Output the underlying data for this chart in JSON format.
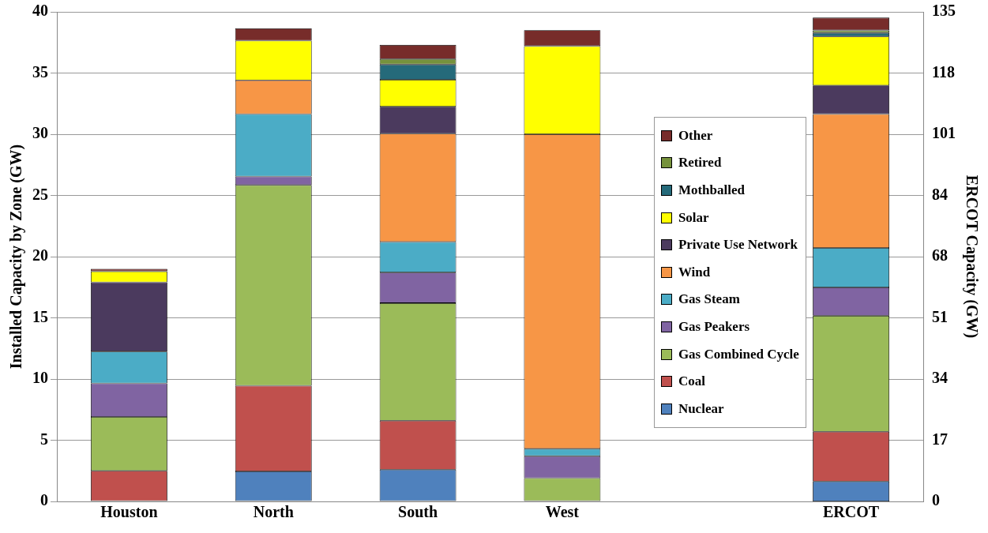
{
  "chart_data": {
    "type": "bar",
    "stacked": true,
    "ylabel": "Installed Capacity by Zone (GW)",
    "y2label": "ERCOT Capacity (GW)",
    "categories": [
      "Houston",
      "North",
      "South",
      "West",
      null,
      "ERCOT"
    ],
    "ylim": [
      0,
      40
    ],
    "yticks": [
      0,
      5,
      10,
      15,
      20,
      25,
      30,
      35,
      40
    ],
    "y2lim": [
      0,
      135
    ],
    "y2ticks": [
      0,
      {
        "value": 16.875,
        "label": "17"
      },
      {
        "value": 33.75,
        "label": "34"
      },
      {
        "value": 50.625,
        "label": "51"
      },
      {
        "value": 67.5,
        "label": "68"
      },
      {
        "value": 84.375,
        "label": "84"
      },
      {
        "value": 101.25,
        "label": "101"
      },
      {
        "value": 118.125,
        "label": "118"
      },
      135
    ],
    "grid": "y",
    "legend": "right",
    "series": [
      {
        "name": "Nuclear",
        "color": "#4f81bd",
        "values": [
          null,
          2.45,
          2.6,
          null,
          null,
          null
        ]
      },
      {
        "name": "Coal",
        "color": "#c0504d",
        "values": [
          2.5,
          7.0,
          4.0,
          null,
          null,
          null
        ]
      },
      {
        "name": "Gas Combined Cycle",
        "color": "#9bbb59",
        "values": [
          4.4,
          16.4,
          9.6,
          1.9,
          null,
          null
        ]
      },
      {
        "name": "Gas Peakers",
        "color": "#8064a2",
        "values": [
          2.75,
          0.7,
          2.5,
          1.8,
          null,
          null
        ]
      },
      {
        "name": "Gas Steam",
        "color": "#4bacc6",
        "values": [
          2.6,
          5.1,
          2.5,
          0.6,
          null,
          null
        ]
      },
      {
        "name": "Wind",
        "color": "#f79646",
        "values": [
          null,
          2.75,
          8.85,
          25.7,
          null,
          null
        ]
      },
      {
        "name": "Private Use Network",
        "color": "#4b3a5e",
        "values": [
          5.65,
          null,
          2.2,
          null,
          null,
          null
        ]
      },
      {
        "name": "Solar",
        "color": "#ffff00",
        "values": [
          0.9,
          3.25,
          2.2,
          7.2,
          null,
          null
        ]
      },
      {
        "name": "Mothballed",
        "color": "#256a7a",
        "values": [
          null,
          null,
          1.25,
          null,
          null,
          null
        ]
      },
      {
        "name": "Retired",
        "color": "#76923c",
        "values": [
          null,
          null,
          0.45,
          null,
          null,
          null
        ]
      },
      {
        "name": "Other",
        "color": "#772c2a",
        "values": [
          0.2,
          1.0,
          1.15,
          1.3,
          null,
          null
        ]
      },
      {
        "axis": "y2",
        "color": "#4f81bd",
        "values": [
          null,
          null,
          null,
          null,
          null,
          5.5
        ]
      },
      {
        "axis": "y2",
        "color": "#c0504d",
        "values": [
          null,
          null,
          null,
          null,
          null,
          13.7
        ]
      },
      {
        "axis": "y2",
        "color": "#9bbb59",
        "values": [
          null,
          null,
          null,
          null,
          null,
          32.0
        ]
      },
      {
        "axis": "y2",
        "color": "#8064a2",
        "values": [
          null,
          null,
          null,
          null,
          null,
          7.8
        ]
      },
      {
        "axis": "y2",
        "color": "#4bacc6",
        "values": [
          null,
          null,
          null,
          null,
          null,
          10.9
        ]
      },
      {
        "axis": "y2",
        "color": "#f79646",
        "values": [
          null,
          null,
          null,
          null,
          null,
          36.9
        ]
      },
      {
        "axis": "y2",
        "color": "#4b3a5e",
        "values": [
          null,
          null,
          null,
          null,
          null,
          7.9
        ]
      },
      {
        "axis": "y2",
        "color": "#ffff00",
        "values": [
          null,
          null,
          null,
          null,
          null,
          13.5
        ]
      },
      {
        "axis": "y2",
        "color": "#256a7a",
        "values": [
          null,
          null,
          null,
          null,
          null,
          1.0
        ]
      },
      {
        "axis": "y2",
        "color": "#76923c",
        "values": [
          null,
          null,
          null,
          null,
          null,
          0.7
        ]
      },
      {
        "axis": "y2",
        "color": "#772c2a",
        "values": [
          null,
          null,
          null,
          null,
          null,
          3.5
        ]
      }
    ]
  }
}
